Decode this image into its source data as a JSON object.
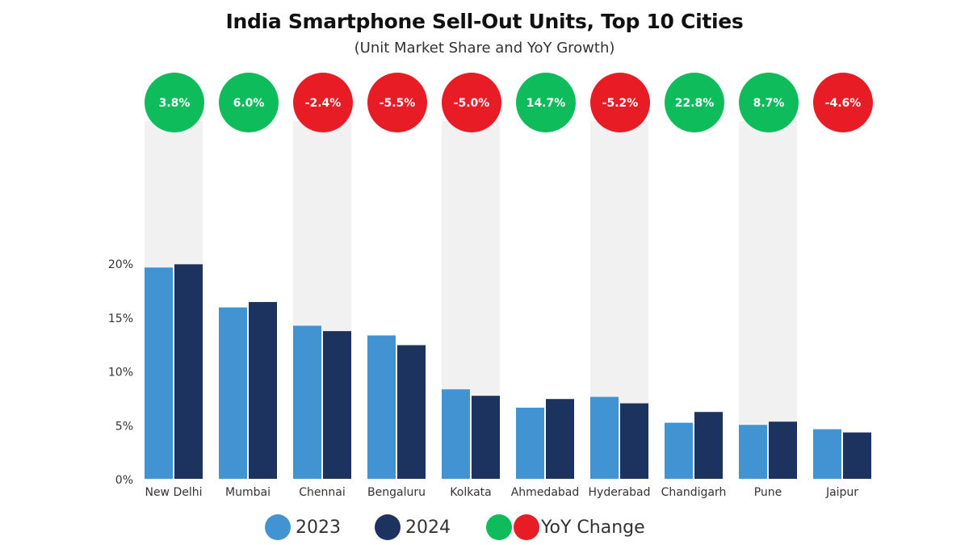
{
  "colors": {
    "y2023": "#4193d2",
    "y2024": "#1c335f",
    "positive": "#0ebc5b",
    "negative": "#e81c25",
    "band": "#f1f1f2",
    "axis_text": "#333333"
  },
  "chart_data": {
    "type": "bar",
    "title": "India Smartphone Sell-Out Units, Top 10 Cities",
    "subtitle": "(Unit Market Share and YoY Growth)",
    "xlabel": "",
    "ylabel": "",
    "ylim": [
      0,
      20
    ],
    "yticks": [
      0,
      5,
      10,
      15,
      20
    ],
    "ytick_labels": [
      "0%",
      "5%",
      "10%",
      "15%",
      "20%"
    ],
    "grid": false,
    "legend_position": "bottom",
    "categories": [
      "New Delhi",
      "Mumbai",
      "Chennai",
      "Bengaluru",
      "Kolkata",
      "Ahmedabad",
      "Hyderabad",
      "Chandigarh",
      "Pune",
      "Jaipur"
    ],
    "series": [
      {
        "name": "2023",
        "values": [
          19.6,
          15.9,
          14.2,
          13.3,
          8.3,
          6.6,
          7.6,
          5.2,
          5.0,
          4.6
        ]
      },
      {
        "name": "2024",
        "values": [
          19.9,
          16.4,
          13.7,
          12.4,
          7.7,
          7.4,
          7.0,
          6.2,
          5.3,
          4.3
        ]
      }
    ],
    "yoy_change": {
      "name": "YoY Change",
      "values": [
        3.8,
        6.0,
        -2.4,
        -5.5,
        -5.0,
        14.7,
        -5.2,
        22.8,
        8.7,
        -4.6
      ],
      "labels": [
        "3.8%",
        "6.0%",
        "-2.4%",
        "-5.5%",
        "-5.0%",
        "14.7%",
        "-5.2%",
        "22.8%",
        "8.7%",
        "-4.6%"
      ]
    },
    "shaded_bands_categories": [
      "New Delhi",
      "Chennai",
      "Kolkata",
      "Hyderabad",
      "Pune"
    ]
  },
  "legend": {
    "items": [
      {
        "label": "2023"
      },
      {
        "label": "2024"
      },
      {
        "label": "YoY Change"
      }
    ]
  }
}
